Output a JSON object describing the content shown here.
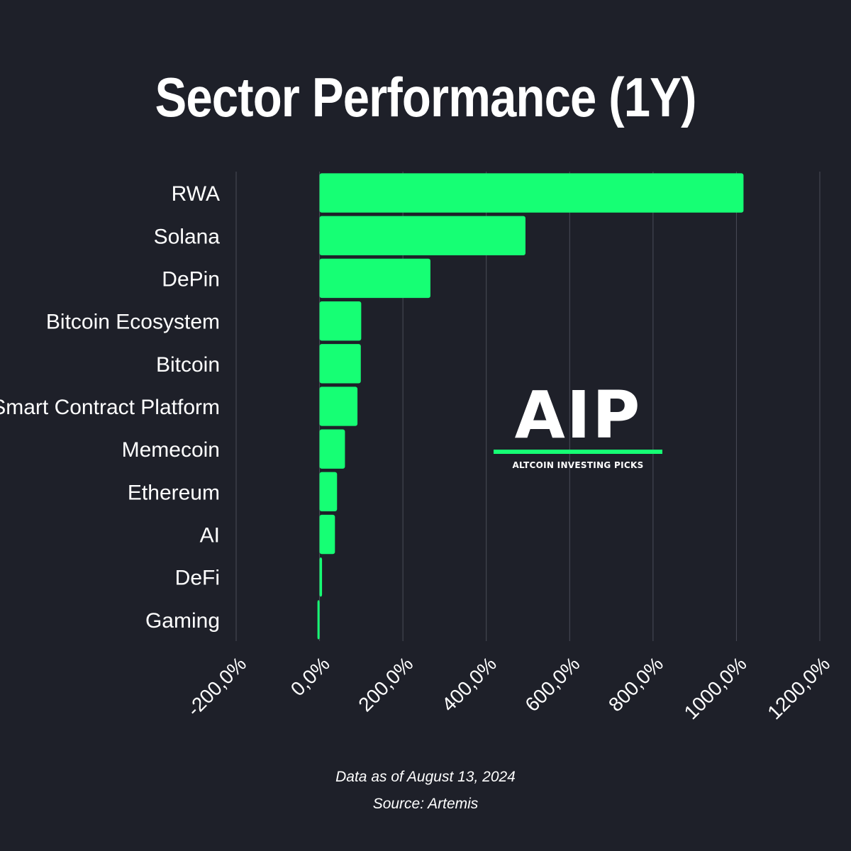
{
  "title": "Sector Performance (1Y)",
  "footer": {
    "date_note": "Data as of August 13, 2024",
    "source_note": "Source: Artemis"
  },
  "logo": {
    "mark": "AIP",
    "tagline": "ALTCOIN INVESTING PICKS"
  },
  "colors": {
    "background": "#1e2029",
    "bar": "#16ff74",
    "grid": "#4a4d58",
    "text": "#ffffff"
  },
  "chart_data": {
    "type": "bar",
    "orientation": "horizontal",
    "categories": [
      "RWA",
      "Solana",
      "DePin",
      "Bitcoin Ecosystem",
      "Bitcoin",
      "Smart Contract Platform",
      "Memecoin",
      "Ethereum",
      "AI",
      "DeFi",
      "Gaming"
    ],
    "values": [
      1017,
      494,
      266,
      100,
      99,
      91,
      61,
      42,
      37,
      6,
      -5
    ],
    "value_unit": "%",
    "xlim": [
      -200,
      1200
    ],
    "xticks": [
      -200,
      0,
      200,
      400,
      600,
      800,
      1000,
      1200
    ],
    "xtick_labels": [
      "-200,0%",
      "0,0%",
      "200,0%",
      "400,0%",
      "600,0%",
      "800,0%",
      "1000,0%",
      "1200,0%"
    ],
    "grid": "vertical",
    "title": "Sector Performance (1Y)",
    "xlabel": "",
    "ylabel": ""
  }
}
